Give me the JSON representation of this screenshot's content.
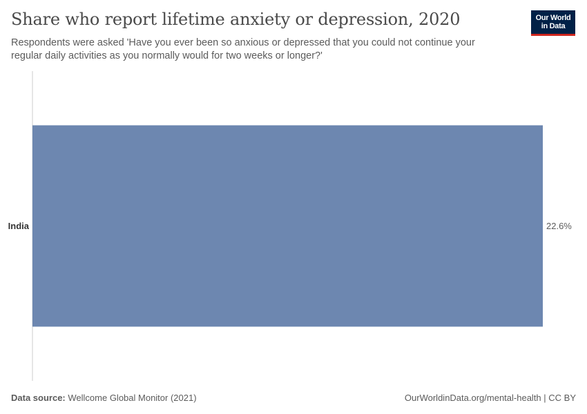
{
  "header": {
    "title": "Share who report lifetime anxiety or depression, 2020",
    "subtitle": "Respondents were asked 'Have you ever been so anxious or depressed that you could not continue your regular daily activities as you normally would for two weeks or longer?'"
  },
  "logo": {
    "line1": "Our World",
    "line2": "in Data"
  },
  "footer": {
    "source_label": "Data source:",
    "source_value": "Wellcome Global Monitor (2021)",
    "right": "OurWorldinData.org/mental-health | CC BY"
  },
  "colors": {
    "bar": "#6d87b0",
    "axis": "#cccccc",
    "text": "#5b5b5b",
    "label": "#333333"
  },
  "chart_data": {
    "type": "bar",
    "orientation": "horizontal",
    "categories": [
      "India"
    ],
    "values": [
      22.6
    ],
    "value_labels": [
      "22.6%"
    ],
    "xlim": [
      0,
      22.6
    ],
    "grid": false
  }
}
